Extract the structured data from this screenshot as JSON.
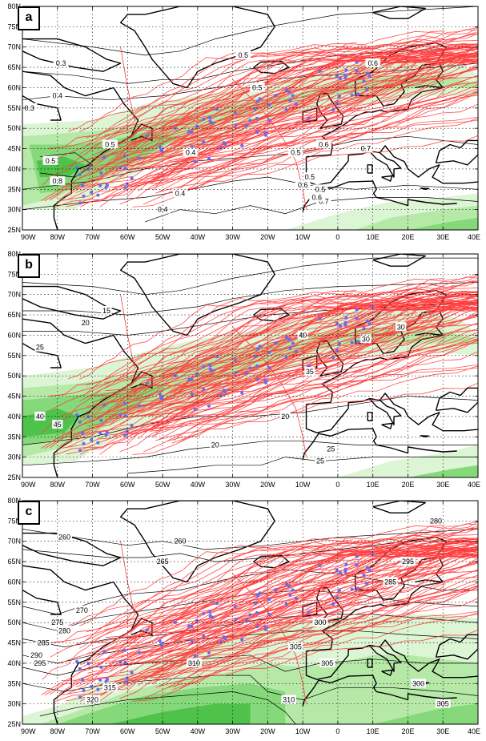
{
  "colors": {
    "track": "#ff3b3b",
    "genesis_point": "#6b6bf0",
    "land": "#000000",
    "contour": "#000000",
    "shade_levels": [
      "#ffffff",
      "#dcf5d4",
      "#b6e9a8",
      "#86d97a",
      "#4fc24c"
    ]
  },
  "axes": {
    "lat_labels": [
      "80N",
      "75N",
      "70N",
      "65N",
      "60N",
      "55N",
      "50N",
      "45N",
      "40N",
      "35N",
      "30N",
      "25N"
    ],
    "lon_labels": [
      "90W",
      "80W",
      "70W",
      "60W",
      "50W",
      "40W",
      "30W",
      "20W",
      "10W",
      "0",
      "10E",
      "20E",
      "30E",
      "40E"
    ],
    "grid_style": "dotted"
  },
  "panels": [
    {
      "id": "a",
      "label": "a",
      "contour_labels": [
        "0.5",
        "0.3",
        "0.4",
        "0.5",
        "0.6",
        "0.3",
        "0.5",
        "0.4",
        "0.6",
        "0.5",
        "0.4",
        "0.7",
        "0.5",
        "0.8",
        "0.5",
        "0.7",
        "0.6",
        "0.4",
        "0.5",
        "0.6"
      ]
    },
    {
      "id": "b",
      "label": "b",
      "contour_labels": [
        "15",
        "20",
        "25",
        "30",
        "35",
        "40",
        "45",
        "40",
        "30",
        "25",
        "20",
        "20",
        "25"
      ]
    },
    {
      "id": "c",
      "label": "c",
      "contour_labels": [
        "260",
        "260",
        "265",
        "270",
        "275",
        "280",
        "285",
        "290",
        "295",
        "300",
        "305",
        "310",
        "315",
        "320",
        "310",
        "305",
        "300",
        "305",
        "295",
        "280",
        "285"
      ]
    }
  ]
}
